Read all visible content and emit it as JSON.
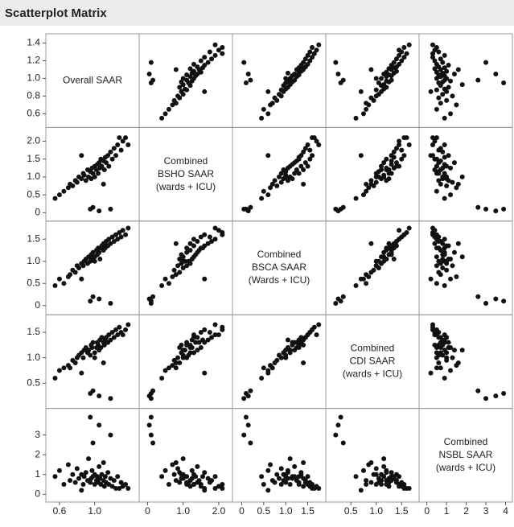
{
  "chart_data": {
    "type": "scatter_matrix",
    "title": "Scatterplot Matrix",
    "color": "#111111",
    "variables": [
      {
        "label_lines": [
          "Overall SAAR"
        ],
        "lim": [
          0.5,
          1.45
        ],
        "yticks": [
          0.6,
          0.8,
          {
            "value": 1,
            "label": "1.0"
          },
          1.2,
          1.4
        ],
        "xticks": [
          0.6,
          {
            "value": 1,
            "label": "1.0"
          }
        ],
        "values": [
          0.95,
          1.05,
          0.98,
          1.18,
          0.55,
          0.6,
          0.65,
          0.7,
          0.72,
          0.75,
          0.78,
          0.8,
          0.82,
          0.85,
          0.87,
          0.88,
          0.9,
          0.92,
          0.93,
          0.95,
          0.96,
          0.97,
          0.98,
          1.0,
          1.0,
          1.02,
          1.03,
          1.04,
          1.05,
          1.06,
          1.07,
          1.08,
          1.1,
          1.11,
          1.12,
          1.13,
          1.15,
          1.16,
          1.18,
          1.2,
          1.22,
          1.24,
          1.26,
          1.28,
          1.3,
          1.32,
          1.35,
          1.38,
          0.85,
          1.1
        ]
      },
      {
        "label_lines": [
          "Combined",
          "BSHO SAAR",
          "(wards + ICU)"
        ],
        "lim": [
          -0.1,
          2.25
        ],
        "yticks": [
          0,
          0.5,
          {
            "value": 1,
            "label": "1.0"
          },
          1.5,
          {
            "value": 2,
            "label": "2.0"
          }
        ],
        "xticks": [
          0,
          {
            "value": 1,
            "label": "1.0"
          },
          {
            "value": 2,
            "label": "2.0"
          }
        ],
        "values": [
          0.1,
          0.05,
          0.15,
          0.1,
          0.4,
          0.5,
          0.6,
          0.7,
          0.8,
          0.75,
          0.9,
          0.85,
          1.0,
          0.95,
          1.1,
          1.05,
          0.9,
          1.2,
          1.0,
          1.15,
          0.95,
          1.25,
          1.1,
          1.3,
          1.0,
          1.2,
          1.35,
          1.1,
          1.4,
          1.25,
          1.5,
          1.3,
          1.45,
          1.2,
          1.55,
          1.4,
          1.6,
          1.3,
          1.7,
          1.5,
          1.8,
          1.6,
          1.9,
          2.1,
          1.75,
          2.0,
          2.1,
          1.9,
          1.6,
          0.8
        ]
      },
      {
        "label_lines": [
          "Combined",
          "BSCA SAAR",
          "(Wards + ICU)"
        ],
        "lim": [
          -0.1,
          1.8
        ],
        "yticks": [
          0,
          0.5,
          {
            "value": 1,
            "label": "1.0"
          },
          1.5
        ],
        "xticks": [
          0,
          0.5,
          {
            "value": 1,
            "label": "1.0"
          },
          1.5
        ],
        "values": [
          0.1,
          0.15,
          0.2,
          0.05,
          0.45,
          0.6,
          0.5,
          0.65,
          0.7,
          0.8,
          0.75,
          0.9,
          0.85,
          0.95,
          0.9,
          1.0,
          1.05,
          0.95,
          1.1,
          1.0,
          1.15,
          1.05,
          1.2,
          1.1,
          1.0,
          1.25,
          1.15,
          1.3,
          1.2,
          1.05,
          1.3,
          1.35,
          1.25,
          1.4,
          1.3,
          1.45,
          1.35,
          1.5,
          1.4,
          1.55,
          1.45,
          1.6,
          1.5,
          1.65,
          1.55,
          1.7,
          1.6,
          1.75,
          0.6,
          1.4
        ]
      },
      {
        "label_lines": [
          "Combined",
          "CDI SAAR",
          "(wards + ICU)"
        ],
        "lim": [
          0.1,
          1.75
        ],
        "yticks": [
          0.5,
          {
            "value": 1,
            "label": "1.0"
          },
          1.5
        ],
        "xticks": [
          0.5,
          {
            "value": 1,
            "label": "1.0"
          },
          1.5
        ],
        "values": [
          0.3,
          0.25,
          0.35,
          0.2,
          0.6,
          0.75,
          0.8,
          0.85,
          0.8,
          0.95,
          0.9,
          1.0,
          1.05,
          1.1,
          1.0,
          1.15,
          1.2,
          1.1,
          1.15,
          1.05,
          1.25,
          1.2,
          1.3,
          1.1,
          1.0,
          1.2,
          1.3,
          1.25,
          1.15,
          1.35,
          1.2,
          1.4,
          1.3,
          1.25,
          1.35,
          1.4,
          1.3,
          1.45,
          1.35,
          1.5,
          1.4,
          1.55,
          1.45,
          1.6,
          1.5,
          1.45,
          1.55,
          1.65,
          0.7,
          0.9
        ]
      },
      {
        "label_lines": [
          "Combined",
          "NSBL SAAR",
          "(wards + ICU)"
        ],
        "lim": [
          -0.15,
          4.1
        ],
        "yticks": [
          0,
          1,
          2,
          3
        ],
        "xticks": [
          0,
          1,
          2,
          3,
          4
        ],
        "values": [
          3.9,
          3.5,
          2.6,
          3.0,
          0.9,
          1.2,
          0.5,
          1.5,
          0.7,
          1.0,
          0.6,
          1.3,
          0.8,
          1.0,
          0.5,
          0.9,
          1.1,
          0.7,
          1.8,
          0.6,
          0.8,
          1.2,
          0.9,
          0.5,
          1.0,
          0.7,
          0.9,
          0.6,
          1.4,
          0.8,
          0.5,
          1.0,
          0.7,
          0.4,
          0.9,
          0.6,
          1.1,
          0.5,
          0.8,
          0.4,
          0.7,
          0.3,
          0.9,
          0.3,
          0.6,
          0.4,
          0.5,
          0.3,
          0.2,
          1.6
        ]
      }
    ]
  }
}
